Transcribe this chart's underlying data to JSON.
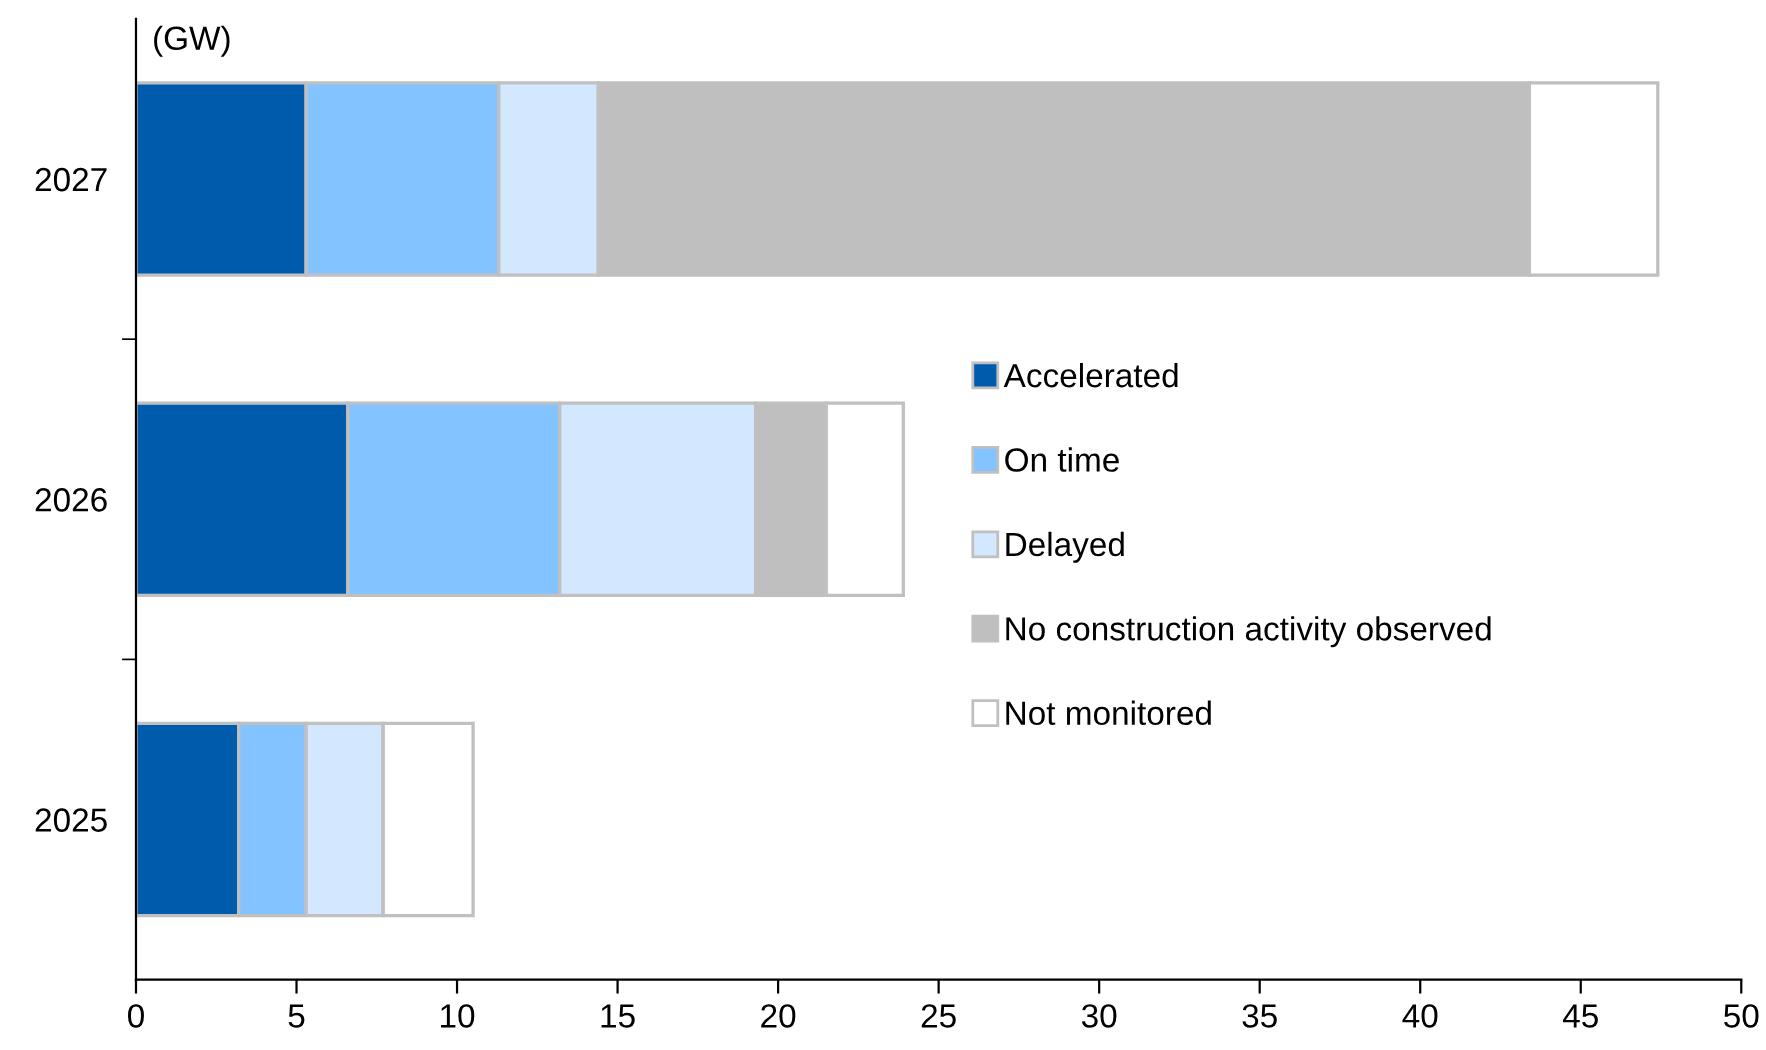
{
  "chart_data": {
    "type": "bar",
    "orientation": "horizontal",
    "stacked": true,
    "xlabel": "(GW)",
    "categories": [
      "2027",
      "2026",
      "2025"
    ],
    "series": [
      {
        "name": "Accelerated",
        "color": "#005bac",
        "values": [
          5.3,
          6.6,
          3.2
        ]
      },
      {
        "name": "On time",
        "color": "#83c3ff",
        "values": [
          6.0,
          6.6,
          2.1
        ]
      },
      {
        "name": "Delayed",
        "color": "#d3e8ff",
        "values": [
          3.1,
          6.1,
          2.4
        ]
      },
      {
        "name": "No construction activity observed",
        "color": "#bfbfbf",
        "values": [
          29.0,
          2.2,
          0
        ]
      },
      {
        "name": "Not monitored",
        "color": "#ffffff",
        "values": [
          4.0,
          2.4,
          2.8
        ]
      }
    ],
    "xlim": [
      0,
      50
    ],
    "xticks": [
      0,
      5,
      10,
      15,
      20,
      25,
      30,
      35,
      40,
      45,
      50
    ],
    "legend": "right",
    "grid": false,
    "marker": "square"
  }
}
